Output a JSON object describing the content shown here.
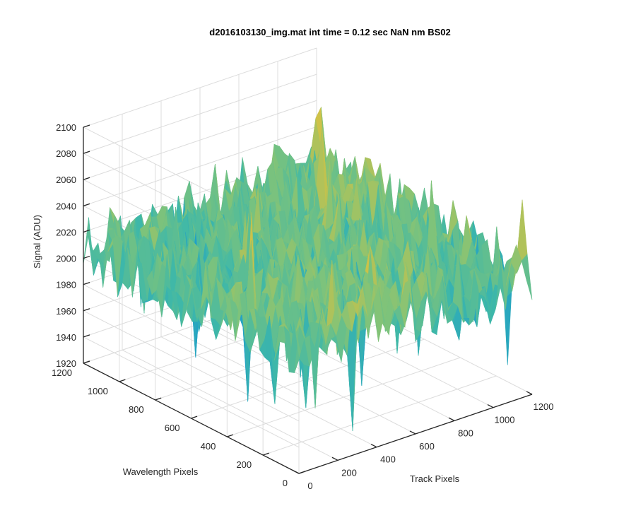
{
  "chart_data": {
    "type": "surface",
    "title": "d2016103130_img.mat int time = 0.12 sec  NaN nm BS02",
    "xlabel": "Track Pixels",
    "ylabel": "Wavelength Pixels",
    "zlabel": "Signal (ADU)",
    "xlim": [
      0,
      1200
    ],
    "ylim": [
      0,
      1200
    ],
    "zlim": [
      1920,
      2100
    ],
    "x_ticks": [
      "0",
      "200",
      "400",
      "600",
      "800",
      "1000",
      "1200"
    ],
    "y_ticks": [
      "0",
      "200",
      "400",
      "600",
      "800",
      "1000",
      "1200"
    ],
    "z_ticks": [
      "1920",
      "1940",
      "1960",
      "1980",
      "2000",
      "2020",
      "2040",
      "2060",
      "2080",
      "2100"
    ],
    "grid": true,
    "colormap": [
      "#0072bd",
      "#20a0c8",
      "#3fb8a8",
      "#7fc37a",
      "#c8c24a",
      "#f0c040"
    ],
    "surface_summary": {
      "baseline_signal": 2010,
      "noise_amplitude": 25,
      "min_signal_approx": 1930,
      "max_signal_approx": 2090
    }
  }
}
